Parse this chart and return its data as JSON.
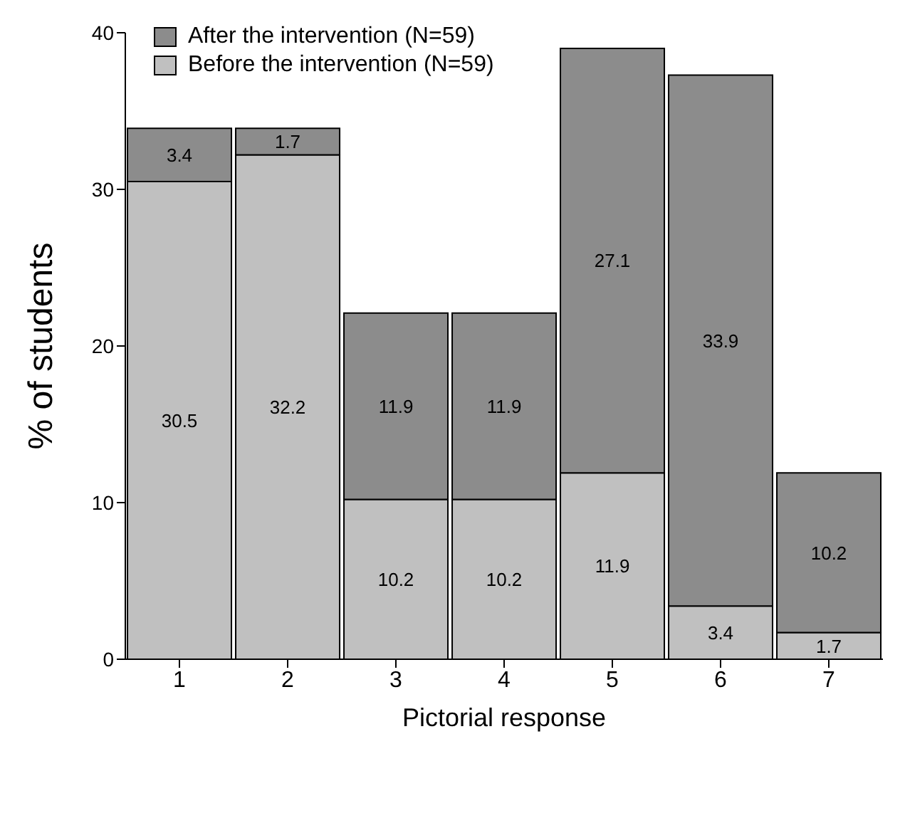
{
  "chart_data": {
    "type": "bar",
    "stacked": true,
    "xlabel": "Pictorial response",
    "ylabel": "% of students",
    "categories": [
      "1",
      "2",
      "3",
      "4",
      "5",
      "6",
      "7"
    ],
    "series": [
      {
        "name": "Before the intervention (N=59)",
        "color": "#c0c0c0",
        "values": [
          30.5,
          32.2,
          10.2,
          10.2,
          11.9,
          3.4,
          1.7
        ]
      },
      {
        "name": "After the intervention (N=59)",
        "color": "#8c8c8c",
        "values": [
          3.4,
          1.7,
          11.9,
          11.9,
          27.1,
          33.9,
          10.2
        ]
      }
    ],
    "ylim": [
      0,
      40
    ],
    "yticks": [
      0,
      10,
      20,
      30,
      40
    ],
    "grid": false,
    "legend": "top left",
    "data_labels": true
  }
}
